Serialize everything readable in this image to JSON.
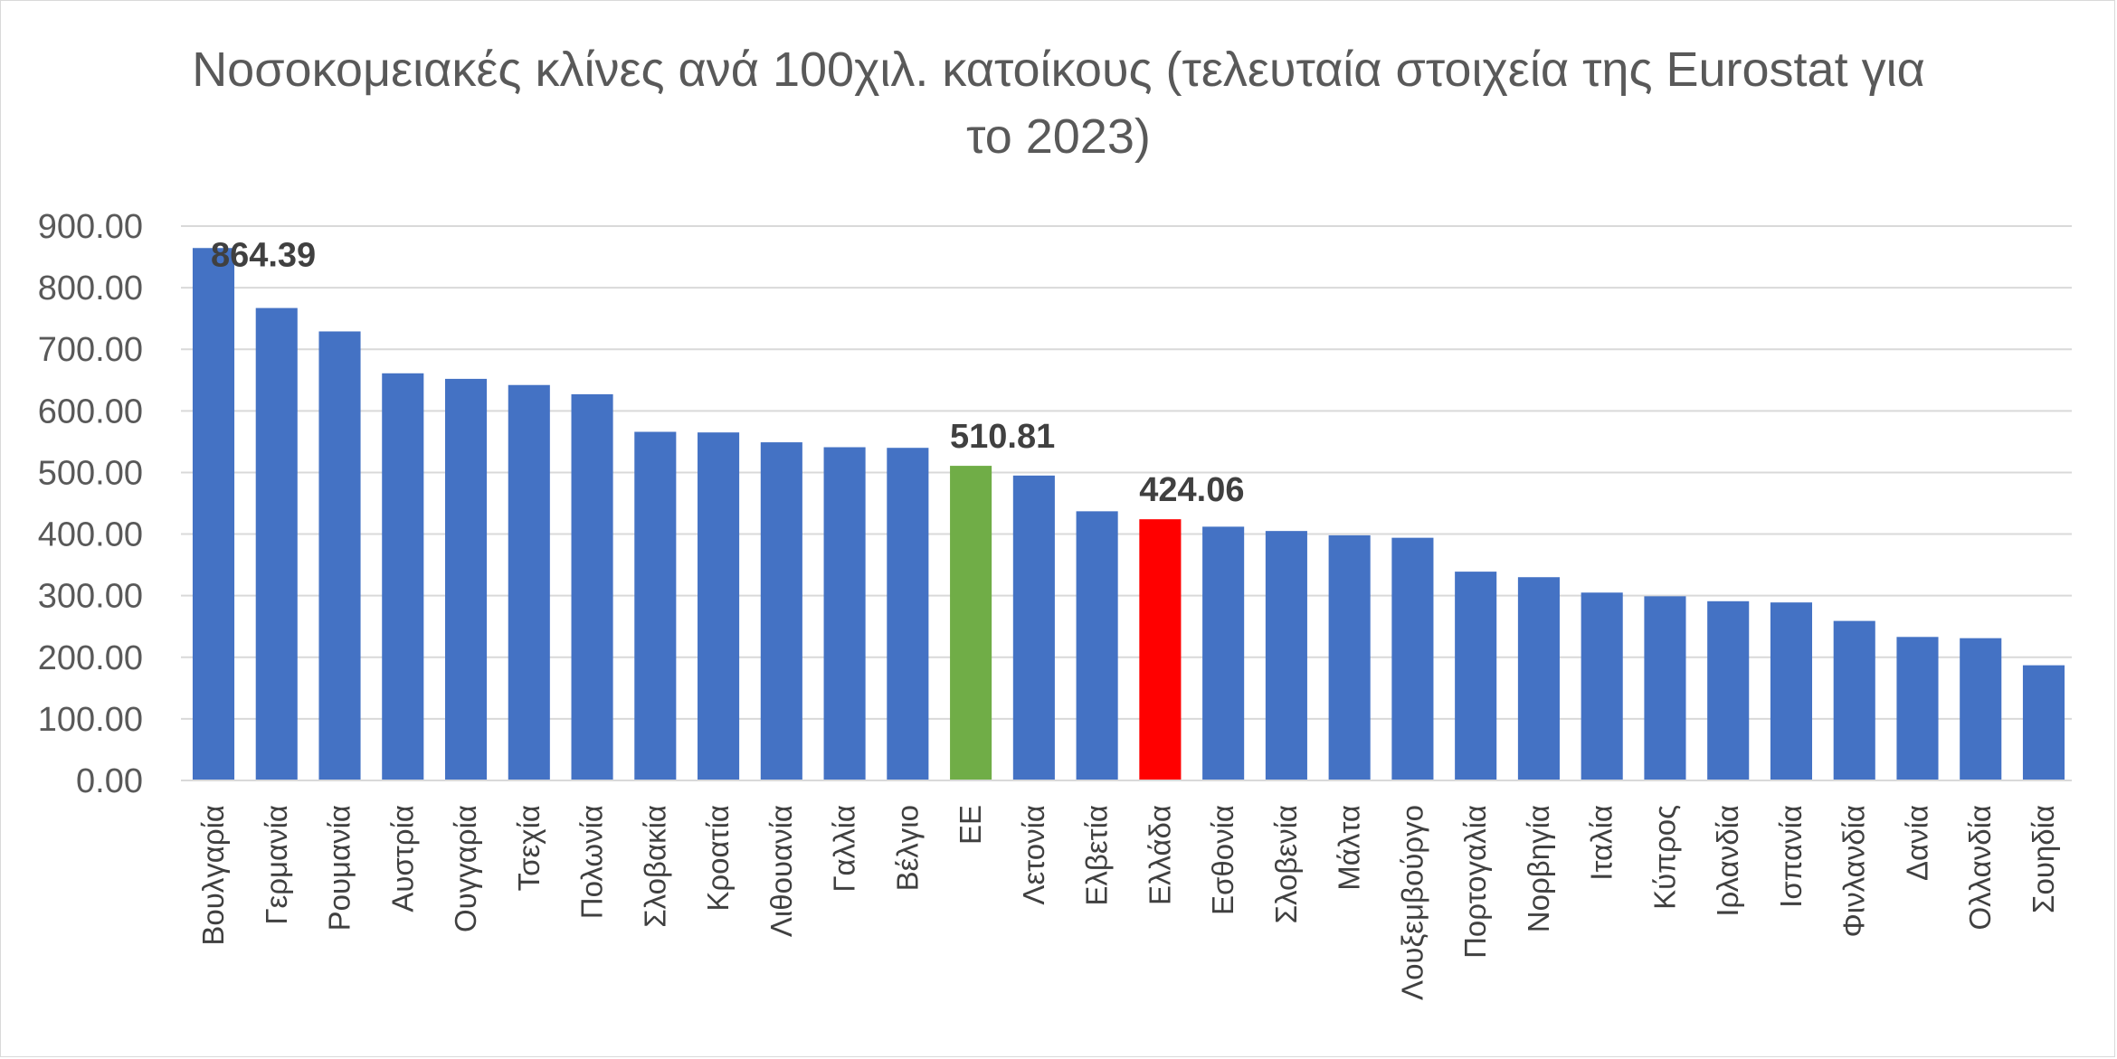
{
  "chart_data": {
    "type": "bar",
    "title": "Νοσοκομειακές κλίνες ανά 100χιλ. κατοίκους (τελευταία στοιχεία της Eurostat για το 2023)",
    "xlabel": "",
    "ylabel": "",
    "ylim": [
      0,
      900
    ],
    "ytick_step": 100,
    "ytick_labels": [
      "0.00",
      "100.00",
      "200.00",
      "300.00",
      "400.00",
      "500.00",
      "600.00",
      "700.00",
      "800.00",
      "900.00"
    ],
    "grid": true,
    "legend": "none",
    "categories": [
      "Βουλγαρία",
      "Γερμανία",
      "Ρουμανία",
      "Αυστρία",
      "Ουγγαρία",
      "Τσεχία",
      "Πολωνία",
      "Σλοβακία",
      "Κροατία",
      "Λιθουανία",
      "Γαλλία",
      "Βέλγιο",
      "ΕΕ",
      "Λετονία",
      "Ελβετία",
      "Ελλάδα",
      "Εσθονία",
      "Σλοβενία",
      "Μάλτα",
      "Λουξεμβούργο",
      "Πορτογαλία",
      "Νορβηγία",
      "Ιταλία",
      "Κύπρος",
      "Ιρλανδία",
      "Ισπανία",
      "Φινλανδία",
      "Δανία",
      "Ολλανδία",
      "Σουηδία"
    ],
    "values": [
      864.39,
      767,
      729,
      661,
      652,
      642,
      627,
      566,
      565,
      549,
      541,
      540,
      510.81,
      495,
      437,
      424.06,
      412,
      405,
      398,
      394,
      339,
      330,
      305,
      299,
      291,
      289,
      259,
      233,
      231,
      187
    ],
    "colors": {
      "default": "#4472C4",
      "ΕΕ": "#70AD47",
      "Ελλάδα": "#FF0000"
    },
    "data_labels": [
      {
        "category": "Βουλγαρία",
        "text": "864.39"
      },
      {
        "category": "ΕΕ",
        "text": "510.81"
      },
      {
        "category": "Ελλάδα",
        "text": "424.06"
      }
    ],
    "grid_color": "#d9d9d9"
  }
}
